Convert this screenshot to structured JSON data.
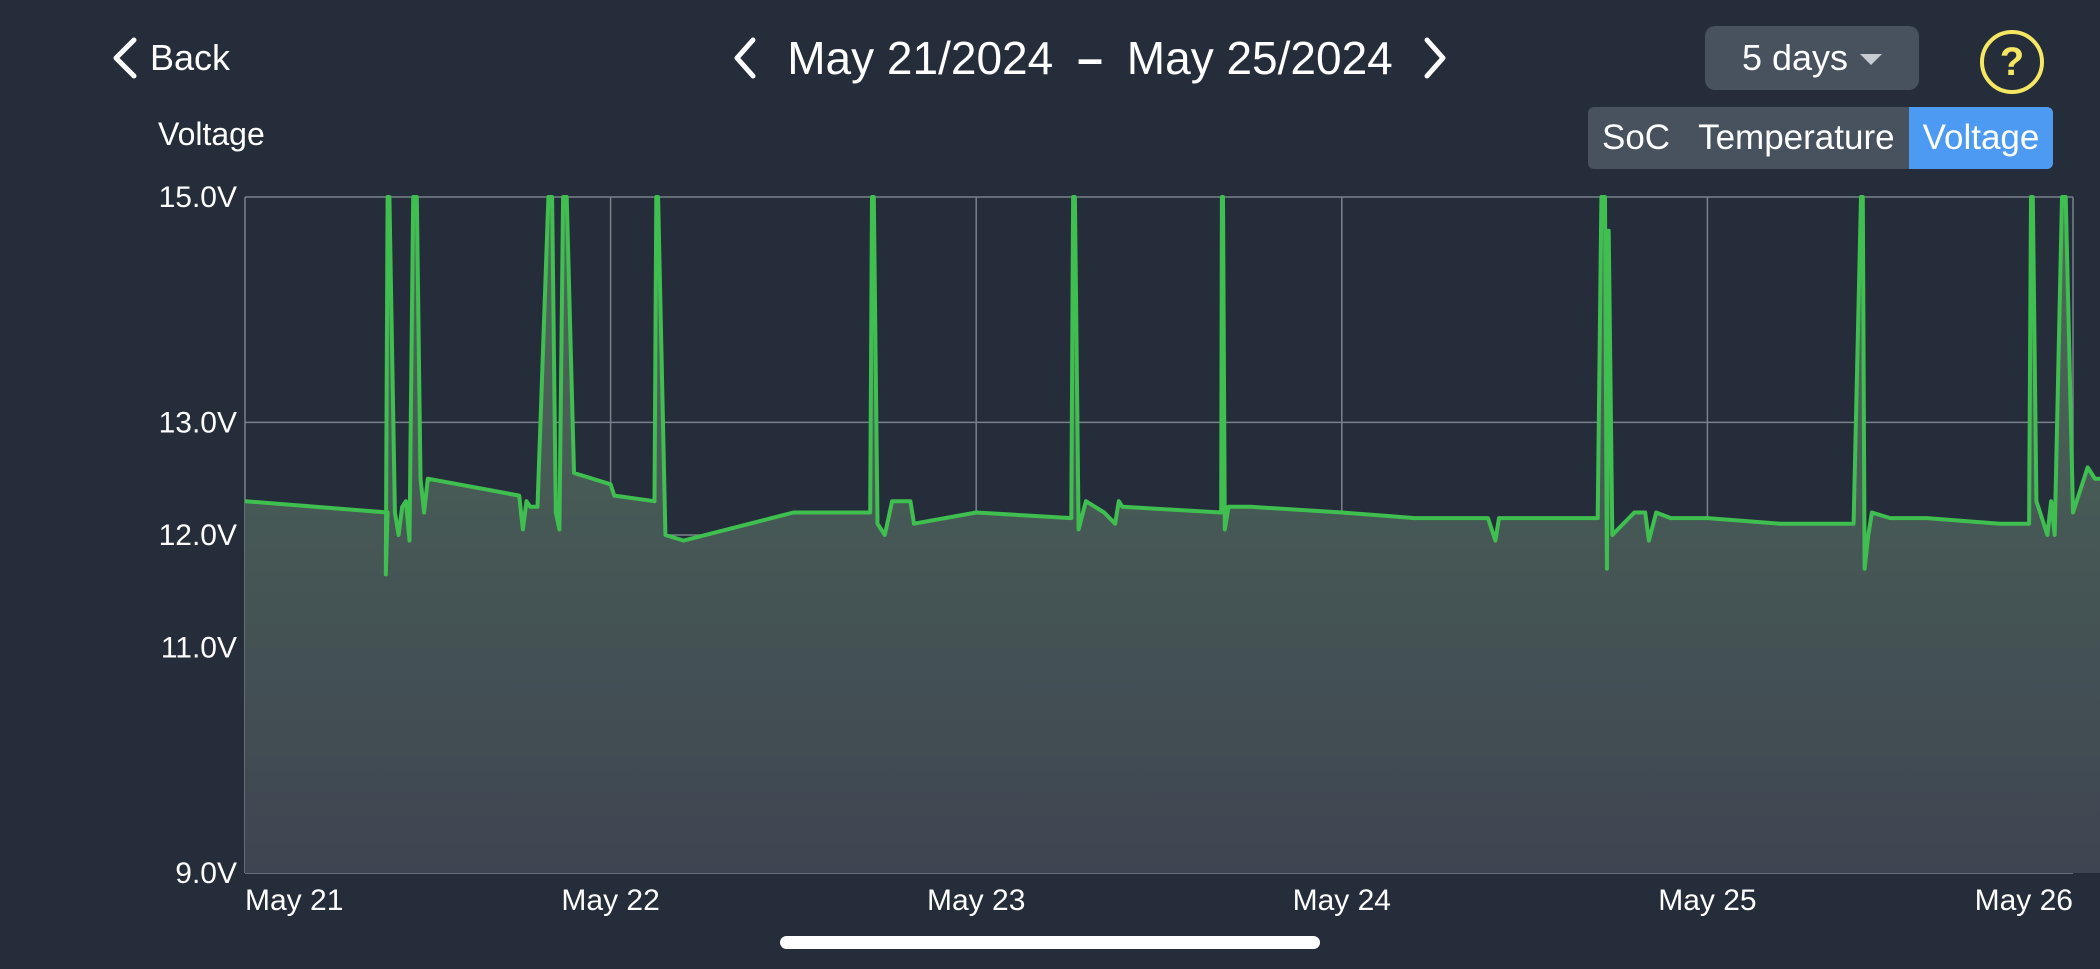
{
  "header": {
    "back_label": "Back",
    "start_date": "May 21/2024",
    "separator": "–",
    "end_date": "May 25/2024",
    "range_label": "5 days",
    "help_symbol": "?"
  },
  "metric_tabs": [
    {
      "label": "SoC",
      "active": false
    },
    {
      "label": "Temperature",
      "active": false
    },
    {
      "label": "Voltage",
      "active": true
    }
  ],
  "colors": {
    "background": "#252d3a",
    "line": "#3fbf4f",
    "active_tab": "#4d9af3",
    "help": "#f5e663"
  },
  "chart_data": {
    "type": "area",
    "ylabel": "Voltage",
    "ylim": [
      9.0,
      15.0
    ],
    "xlim": [
      "May 21",
      "May 26"
    ],
    "y_ticks": [
      {
        "value": 9.0,
        "label": "9.0V"
      },
      {
        "value": 11.0,
        "label": "11.0V"
      },
      {
        "value": 12.0,
        "label": "12.0V"
      },
      {
        "value": 13.0,
        "label": "13.0V"
      },
      {
        "value": 15.0,
        "label": "15.0V"
      }
    ],
    "x_ticks": [
      "May 21",
      "May 22",
      "May 23",
      "May 24",
      "May 25",
      "May 26"
    ],
    "grid": true,
    "x": [
      0,
      0.39,
      0.385,
      0.39,
      0.395,
      0.41,
      0.42,
      0.43,
      0.44,
      0.45,
      0.46,
      0.47,
      0.48,
      0.49,
      0.5,
      0.75,
      0.755,
      0.76,
      0.77,
      0.78,
      0.8,
      0.83,
      0.84,
      0.85,
      0.86,
      0.87,
      0.88,
      0.9,
      1.0,
      1.005,
      1.01,
      1.12,
      1.125,
      1.13,
      1.15,
      1.2,
      1.5,
      1.71,
      1.715,
      1.72,
      1.73,
      1.75,
      1.77,
      1.78,
      1.8,
      1.82,
      1.83,
      2.0,
      2.26,
      2.265,
      2.27,
      2.28,
      2.3,
      2.35,
      2.38,
      2.39,
      2.4,
      2.67,
      2.672,
      2.675,
      2.68,
      2.69,
      2.75,
      3.0,
      3.2,
      3.3,
      3.4,
      3.42,
      3.43,
      3.5,
      3.6,
      3.7,
      3.71,
      3.72,
      3.725,
      3.73,
      3.74,
      3.8,
      3.83,
      3.84,
      3.86,
      3.9,
      4.0,
      4.2,
      4.4,
      4.42,
      4.425,
      4.43,
      4.44,
      4.45,
      4.5,
      4.6,
      4.8,
      4.85,
      4.88,
      4.885,
      4.89,
      4.9,
      4.93,
      4.94,
      4.95,
      4.97,
      4.98,
      5.0,
      5.03,
      5.04,
      5.05,
      5.06,
      5.07,
      5.08,
      5.09,
      5.1,
      5.12,
      5.13,
      5.16,
      5.2,
      5.3,
      5.6
    ],
    "series": [
      {
        "values": [
          12.3,
          12.2,
          11.65,
          15.0,
          15.0,
          12.2,
          12.0,
          12.25,
          12.3,
          11.95,
          15.0,
          15.0,
          12.5,
          12.2,
          12.5,
          12.35,
          12.2,
          12.05,
          12.3,
          12.25,
          12.25,
          15.0,
          15.0,
          12.2,
          12.05,
          15.0,
          15.0,
          12.55,
          12.45,
          12.4,
          12.35,
          12.3,
          15.0,
          15.0,
          12.0,
          11.95,
          12.2,
          12.2,
          15.0,
          15.0,
          12.1,
          12.0,
          12.3,
          12.3,
          12.3,
          12.3,
          12.1,
          12.2,
          12.15,
          15.0,
          15.0,
          12.05,
          12.3,
          12.2,
          12.1,
          12.3,
          12.25,
          12.2,
          15.0,
          15.0,
          12.05,
          12.25,
          12.25,
          12.2,
          12.15,
          12.15,
          12.15,
          11.95,
          12.15,
          12.15,
          12.15,
          12.15,
          15.0,
          15.0,
          11.7,
          14.7,
          12.0,
          12.2,
          12.2,
          11.95,
          12.2,
          12.15,
          12.15,
          12.1,
          12.1,
          15.0,
          15.0,
          11.7,
          12.0,
          12.2,
          12.15,
          12.15,
          12.1,
          12.1,
          12.1,
          15.0,
          15.0,
          12.3,
          12.0,
          12.3,
          12.0,
          15.0,
          15.0,
          12.2,
          12.5,
          12.6,
          12.55,
          12.5,
          12.5,
          12.5,
          12.5,
          12.5,
          12.5,
          12.5,
          12.5,
          12.55,
          12.55,
          12.55
        ]
      }
    ]
  }
}
